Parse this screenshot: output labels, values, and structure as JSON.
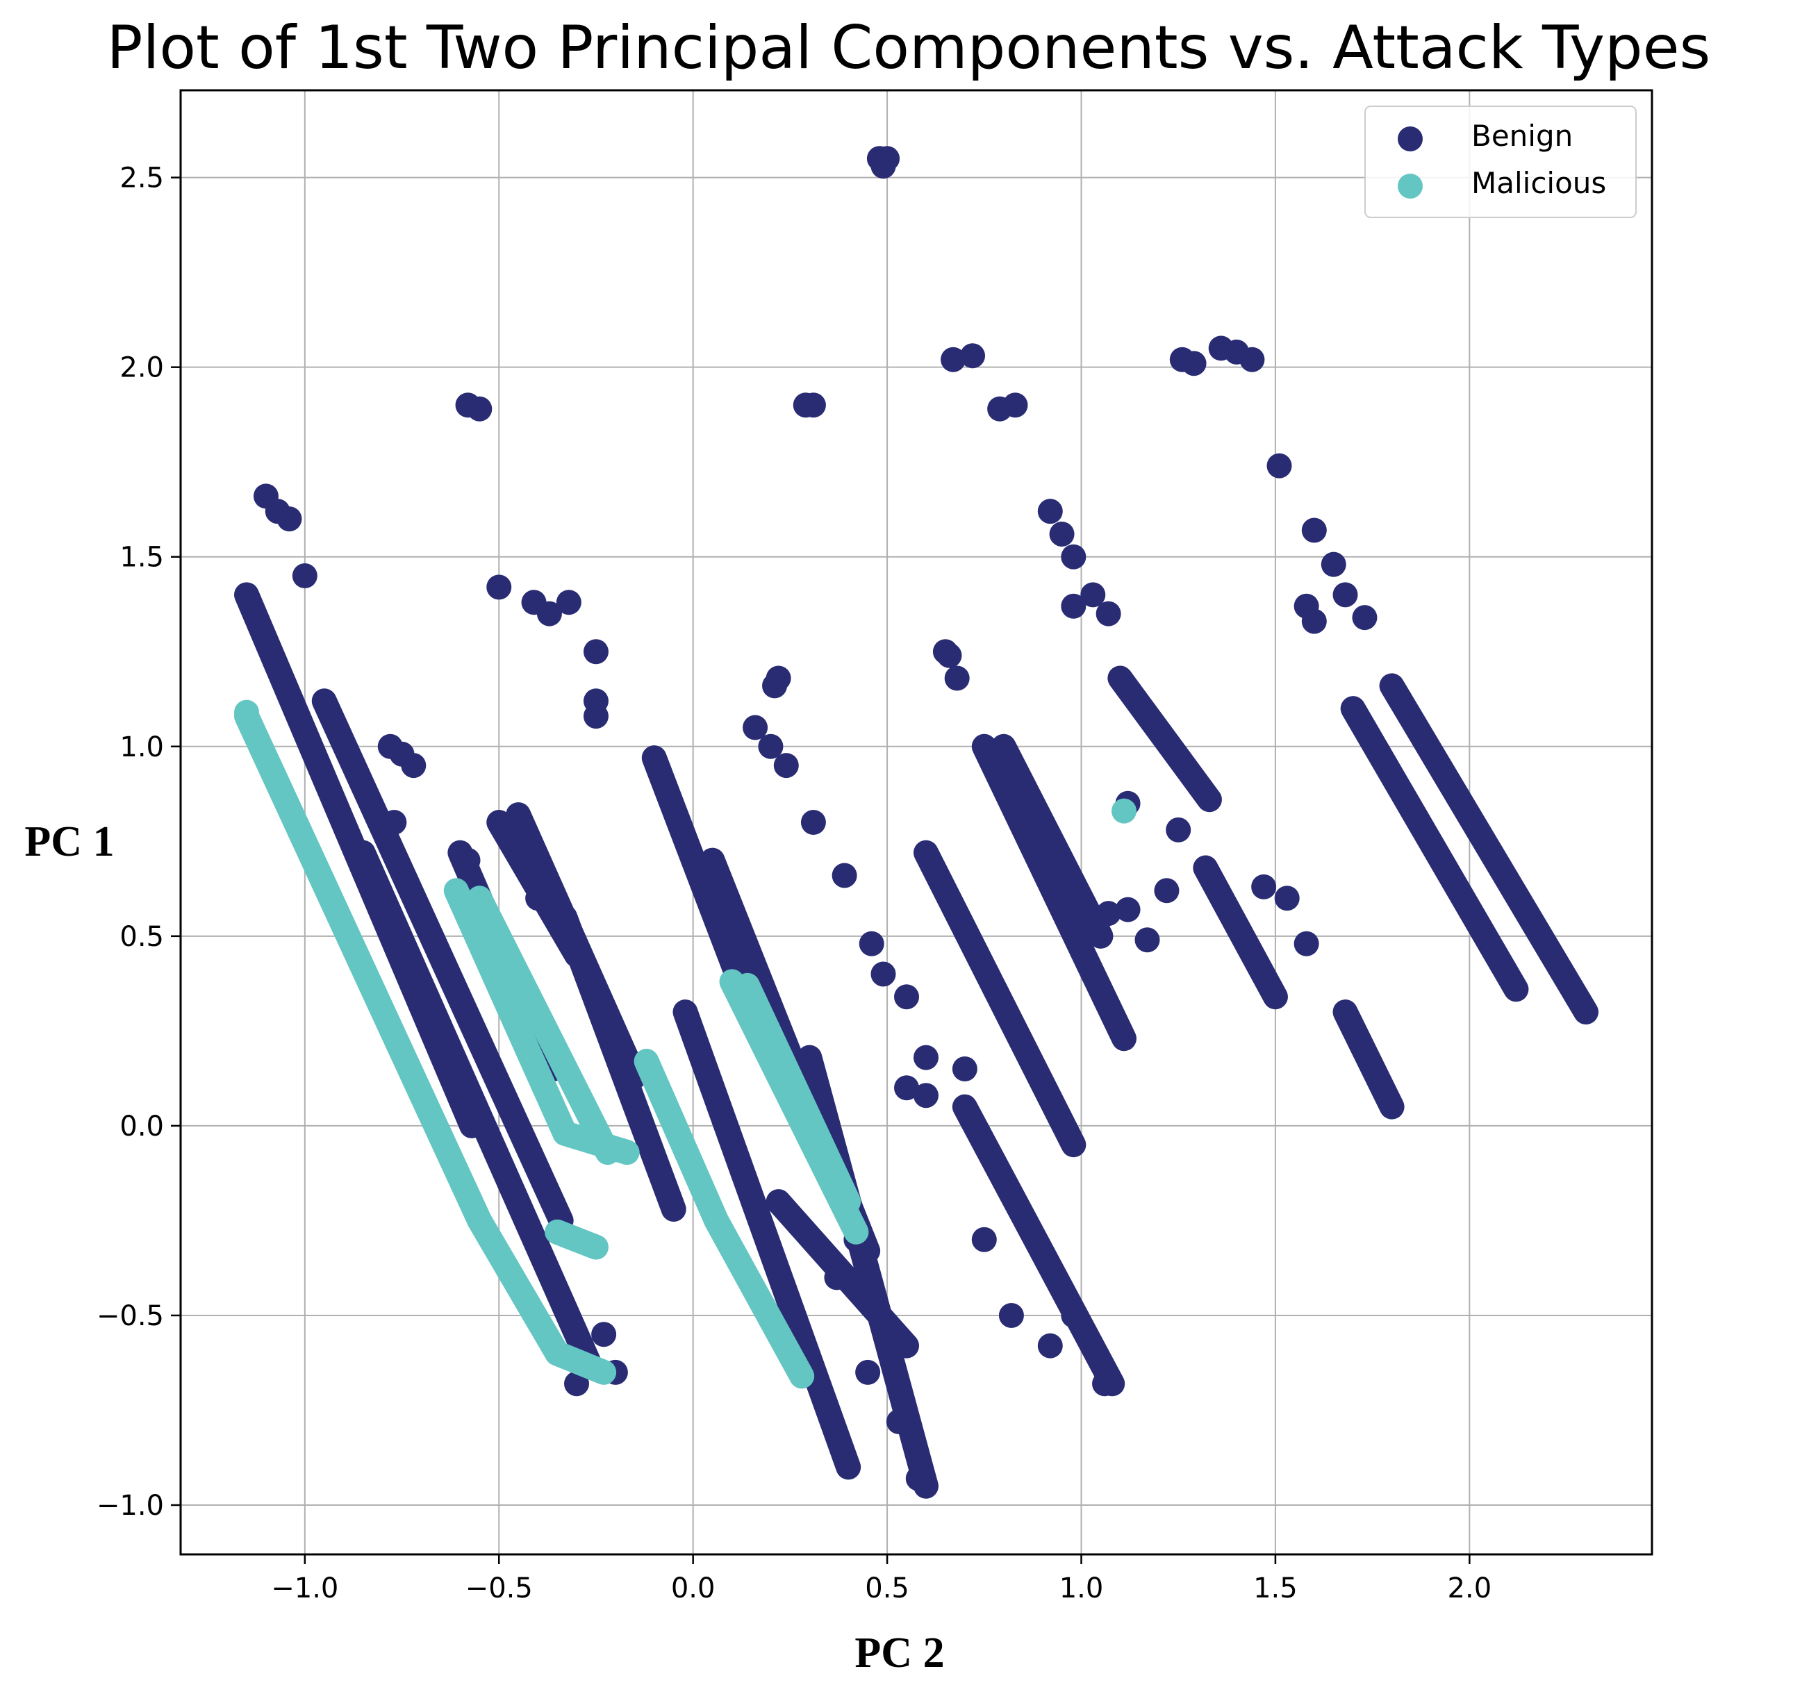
{
  "chart_data": {
    "type": "scatter",
    "title": "Plot of 1st Two Principal Components vs. Attack Types",
    "xlabel": "PC 2",
    "ylabel": "PC 1",
    "xlim": [
      -1.32,
      2.47
    ],
    "ylim": [
      -1.13,
      2.73
    ],
    "xticks": [
      -1.0,
      -0.5,
      0.0,
      0.5,
      1.0,
      1.5,
      2.0
    ],
    "xtick_labels": [
      "−1.0",
      "−0.5",
      "0.0",
      "0.5",
      "1.0",
      "1.5",
      "2.0"
    ],
    "yticks": [
      -1.0,
      -0.5,
      0.0,
      0.5,
      1.0,
      1.5,
      2.0,
      2.5
    ],
    "ytick_labels": [
      "−1.0",
      "−0.5",
      "0.0",
      "0.5",
      "1.0",
      "1.5",
      "2.0",
      "2.5"
    ],
    "grid": true,
    "legend_position": "top-right",
    "series": [
      {
        "name": "Benign",
        "color": "#292c73",
        "segments": [
          [
            [
              -1.15,
              1.4
            ],
            [
              -0.57,
              0.0
            ]
          ],
          [
            [
              -0.95,
              1.12
            ],
            [
              -0.34,
              -0.25
            ]
          ],
          [
            [
              -0.85,
              0.72
            ],
            [
              -0.27,
              -0.62
            ]
          ],
          [
            [
              -0.6,
              0.72
            ],
            [
              -0.36,
              0.15
            ]
          ],
          [
            [
              -0.45,
              0.82
            ],
            [
              -0.15,
              0.13
            ]
          ],
          [
            [
              -0.33,
              0.55
            ],
            [
              -0.05,
              -0.22
            ]
          ],
          [
            [
              -0.1,
              0.97
            ],
            [
              0.15,
              0.3
            ]
          ],
          [
            [
              0.05,
              0.7
            ],
            [
              0.45,
              -0.33
            ]
          ],
          [
            [
              -0.02,
              0.3
            ],
            [
              0.4,
              -0.9
            ]
          ],
          [
            [
              0.3,
              0.18
            ],
            [
              0.6,
              -0.95
            ]
          ],
          [
            [
              0.22,
              -0.2
            ],
            [
              0.55,
              -0.58
            ]
          ],
          [
            [
              0.6,
              0.72
            ],
            [
              0.98,
              -0.05
            ]
          ],
          [
            [
              0.7,
              0.05
            ],
            [
              1.08,
              -0.68
            ]
          ],
          [
            [
              0.75,
              1.0
            ],
            [
              1.11,
              0.23
            ]
          ],
          [
            [
              1.1,
              1.18
            ],
            [
              1.33,
              0.86
            ]
          ],
          [
            [
              1.32,
              0.68
            ],
            [
              1.5,
              0.34
            ]
          ],
          [
            [
              1.68,
              0.3
            ],
            [
              1.8,
              0.05
            ]
          ],
          [
            [
              1.7,
              1.1
            ],
            [
              2.12,
              0.36
            ]
          ],
          [
            [
              1.8,
              1.16
            ],
            [
              2.3,
              0.3
            ]
          ],
          [
            [
              0.8,
              1.0
            ],
            [
              1.05,
              0.5
            ]
          ],
          [
            [
              -0.5,
              0.8
            ],
            [
              -0.3,
              0.45
            ]
          ]
        ],
        "points": [
          [
            0.48,
            2.55
          ],
          [
            0.5,
            2.55
          ],
          [
            0.49,
            2.53
          ],
          [
            -0.58,
            1.9
          ],
          [
            -0.55,
            1.89
          ],
          [
            0.29,
            1.9
          ],
          [
            0.31,
            1.9
          ],
          [
            0.67,
            2.02
          ],
          [
            0.72,
            2.03
          ],
          [
            0.79,
            1.89
          ],
          [
            0.83,
            1.9
          ],
          [
            1.26,
            2.02
          ],
          [
            1.29,
            2.01
          ],
          [
            1.36,
            2.05
          ],
          [
            1.4,
            2.04
          ],
          [
            1.44,
            2.02
          ],
          [
            1.51,
            1.74
          ],
          [
            -1.1,
            1.66
          ],
          [
            -1.07,
            1.62
          ],
          [
            -1.04,
            1.6
          ],
          [
            -1.0,
            1.45
          ],
          [
            -0.5,
            1.42
          ],
          [
            -0.41,
            1.38
          ],
          [
            -0.37,
            1.35
          ],
          [
            -0.32,
            1.38
          ],
          [
            -0.25,
            1.25
          ],
          [
            -0.25,
            1.08
          ],
          [
            -0.25,
            1.12
          ],
          [
            -0.78,
            1.0
          ],
          [
            -0.75,
            0.98
          ],
          [
            -0.72,
            0.95
          ],
          [
            0.92,
            1.62
          ],
          [
            0.95,
            1.56
          ],
          [
            0.98,
            1.5
          ],
          [
            0.98,
            1.37
          ],
          [
            1.03,
            1.4
          ],
          [
            1.07,
            1.35
          ],
          [
            0.65,
            1.25
          ],
          [
            0.66,
            1.24
          ],
          [
            0.68,
            1.18
          ],
          [
            0.21,
            1.16
          ],
          [
            0.22,
            1.18
          ],
          [
            0.16,
            1.05
          ],
          [
            0.2,
            1.0
          ],
          [
            0.24,
            0.95
          ],
          [
            0.31,
            0.8
          ],
          [
            0.39,
            0.66
          ],
          [
            0.46,
            0.48
          ],
          [
            0.49,
            0.4
          ],
          [
            0.55,
            0.34
          ],
          [
            0.6,
            0.18
          ],
          [
            0.7,
            0.15
          ],
          [
            0.6,
            0.08
          ],
          [
            0.55,
            0.1
          ],
          [
            0.75,
            -0.3
          ],
          [
            0.82,
            -0.5
          ],
          [
            1.07,
            0.56
          ],
          [
            1.12,
            0.57
          ],
          [
            1.17,
            0.49
          ],
          [
            1.12,
            0.85
          ],
          [
            1.25,
            0.78
          ],
          [
            1.22,
            0.62
          ],
          [
            1.6,
            1.57
          ],
          [
            1.58,
            1.37
          ],
          [
            1.6,
            1.33
          ],
          [
            1.65,
            1.48
          ],
          [
            1.68,
            1.4
          ],
          [
            1.73,
            1.34
          ],
          [
            1.47,
            0.63
          ],
          [
            1.53,
            0.6
          ],
          [
            1.58,
            0.48
          ],
          [
            -0.77,
            0.8
          ],
          [
            -0.58,
            0.7
          ],
          [
            -0.4,
            0.6
          ],
          [
            -0.23,
            -0.55
          ],
          [
            -0.3,
            -0.68
          ],
          [
            -0.2,
            -0.65
          ],
          [
            0.45,
            -0.65
          ],
          [
            0.53,
            -0.78
          ],
          [
            0.58,
            -0.93
          ],
          [
            0.98,
            -0.5
          ],
          [
            0.92,
            -0.58
          ],
          [
            1.06,
            -0.68
          ],
          [
            0.37,
            -0.4
          ],
          [
            0.42,
            -0.3
          ]
        ]
      },
      {
        "name": "Malicious",
        "color": "#63c6c3",
        "segments": [
          [
            [
              -1.15,
              1.08
            ],
            [
              -0.55,
              -0.25
            ]
          ],
          [
            [
              -0.55,
              -0.25
            ],
            [
              -0.35,
              -0.6
            ]
          ],
          [
            [
              -0.35,
              -0.6
            ],
            [
              -0.23,
              -0.65
            ]
          ],
          [
            [
              -0.61,
              0.62
            ],
            [
              -0.33,
              -0.02
            ]
          ],
          [
            [
              -0.55,
              0.6
            ],
            [
              -0.22,
              -0.07
            ]
          ],
          [
            [
              -0.33,
              -0.02
            ],
            [
              -0.17,
              -0.07
            ]
          ],
          [
            [
              -0.35,
              -0.28
            ],
            [
              -0.25,
              -0.32
            ]
          ],
          [
            [
              -0.12,
              0.17
            ],
            [
              0.06,
              -0.25
            ]
          ],
          [
            [
              0.06,
              -0.25
            ],
            [
              0.28,
              -0.66
            ]
          ],
          [
            [
              0.1,
              0.38
            ],
            [
              0.42,
              -0.28
            ]
          ],
          [
            [
              0.14,
              0.37
            ],
            [
              0.4,
              -0.2
            ]
          ]
        ],
        "points": [
          [
            1.11,
            0.83
          ],
          [
            -1.15,
            1.09
          ]
        ]
      }
    ]
  }
}
